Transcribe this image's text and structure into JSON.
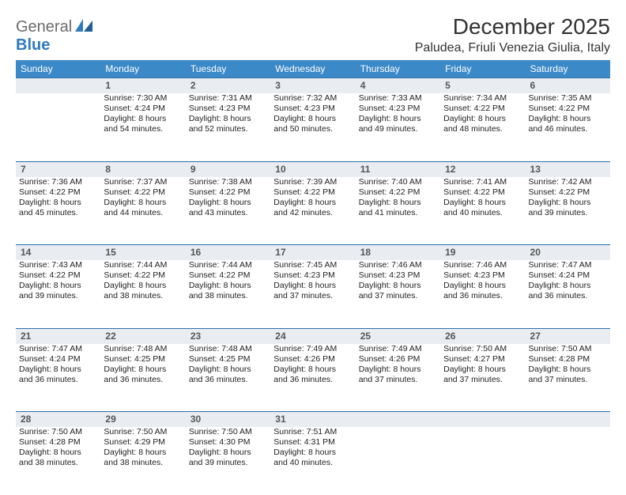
{
  "logo": {
    "text1": "General",
    "text2": "Blue"
  },
  "title": "December 2025",
  "location": "Paludea, Friuli Venezia Giulia, Italy",
  "header_bg": "#3b89c7",
  "daynum_bg": "#e9edf1",
  "daynum_border": "#2e6fa6",
  "day_headers": [
    "Sunday",
    "Monday",
    "Tuesday",
    "Wednesday",
    "Thursday",
    "Friday",
    "Saturday"
  ],
  "weeks": [
    {
      "nums": [
        "",
        "1",
        "2",
        "3",
        "4",
        "5",
        "6"
      ],
      "cells": [
        null,
        {
          "sunrise": "Sunrise: 7:30 AM",
          "sunset": "Sunset: 4:24 PM",
          "day1": "Daylight: 8 hours",
          "day2": "and 54 minutes."
        },
        {
          "sunrise": "Sunrise: 7:31 AM",
          "sunset": "Sunset: 4:23 PM",
          "day1": "Daylight: 8 hours",
          "day2": "and 52 minutes."
        },
        {
          "sunrise": "Sunrise: 7:32 AM",
          "sunset": "Sunset: 4:23 PM",
          "day1": "Daylight: 8 hours",
          "day2": "and 50 minutes."
        },
        {
          "sunrise": "Sunrise: 7:33 AM",
          "sunset": "Sunset: 4:23 PM",
          "day1": "Daylight: 8 hours",
          "day2": "and 49 minutes."
        },
        {
          "sunrise": "Sunrise: 7:34 AM",
          "sunset": "Sunset: 4:22 PM",
          "day1": "Daylight: 8 hours",
          "day2": "and 48 minutes."
        },
        {
          "sunrise": "Sunrise: 7:35 AM",
          "sunset": "Sunset: 4:22 PM",
          "day1": "Daylight: 8 hours",
          "day2": "and 46 minutes."
        }
      ]
    },
    {
      "nums": [
        "7",
        "8",
        "9",
        "10",
        "11",
        "12",
        "13"
      ],
      "cells": [
        {
          "sunrise": "Sunrise: 7:36 AM",
          "sunset": "Sunset: 4:22 PM",
          "day1": "Daylight: 8 hours",
          "day2": "and 45 minutes."
        },
        {
          "sunrise": "Sunrise: 7:37 AM",
          "sunset": "Sunset: 4:22 PM",
          "day1": "Daylight: 8 hours",
          "day2": "and 44 minutes."
        },
        {
          "sunrise": "Sunrise: 7:38 AM",
          "sunset": "Sunset: 4:22 PM",
          "day1": "Daylight: 8 hours",
          "day2": "and 43 minutes."
        },
        {
          "sunrise": "Sunrise: 7:39 AM",
          "sunset": "Sunset: 4:22 PM",
          "day1": "Daylight: 8 hours",
          "day2": "and 42 minutes."
        },
        {
          "sunrise": "Sunrise: 7:40 AM",
          "sunset": "Sunset: 4:22 PM",
          "day1": "Daylight: 8 hours",
          "day2": "and 41 minutes."
        },
        {
          "sunrise": "Sunrise: 7:41 AM",
          "sunset": "Sunset: 4:22 PM",
          "day1": "Daylight: 8 hours",
          "day2": "and 40 minutes."
        },
        {
          "sunrise": "Sunrise: 7:42 AM",
          "sunset": "Sunset: 4:22 PM",
          "day1": "Daylight: 8 hours",
          "day2": "and 39 minutes."
        }
      ]
    },
    {
      "nums": [
        "14",
        "15",
        "16",
        "17",
        "18",
        "19",
        "20"
      ],
      "cells": [
        {
          "sunrise": "Sunrise: 7:43 AM",
          "sunset": "Sunset: 4:22 PM",
          "day1": "Daylight: 8 hours",
          "day2": "and 39 minutes."
        },
        {
          "sunrise": "Sunrise: 7:44 AM",
          "sunset": "Sunset: 4:22 PM",
          "day1": "Daylight: 8 hours",
          "day2": "and 38 minutes."
        },
        {
          "sunrise": "Sunrise: 7:44 AM",
          "sunset": "Sunset: 4:22 PM",
          "day1": "Daylight: 8 hours",
          "day2": "and 38 minutes."
        },
        {
          "sunrise": "Sunrise: 7:45 AM",
          "sunset": "Sunset: 4:23 PM",
          "day1": "Daylight: 8 hours",
          "day2": "and 37 minutes."
        },
        {
          "sunrise": "Sunrise: 7:46 AM",
          "sunset": "Sunset: 4:23 PM",
          "day1": "Daylight: 8 hours",
          "day2": "and 37 minutes."
        },
        {
          "sunrise": "Sunrise: 7:46 AM",
          "sunset": "Sunset: 4:23 PM",
          "day1": "Daylight: 8 hours",
          "day2": "and 36 minutes."
        },
        {
          "sunrise": "Sunrise: 7:47 AM",
          "sunset": "Sunset: 4:24 PM",
          "day1": "Daylight: 8 hours",
          "day2": "and 36 minutes."
        }
      ]
    },
    {
      "nums": [
        "21",
        "22",
        "23",
        "24",
        "25",
        "26",
        "27"
      ],
      "cells": [
        {
          "sunrise": "Sunrise: 7:47 AM",
          "sunset": "Sunset: 4:24 PM",
          "day1": "Daylight: 8 hours",
          "day2": "and 36 minutes."
        },
        {
          "sunrise": "Sunrise: 7:48 AM",
          "sunset": "Sunset: 4:25 PM",
          "day1": "Daylight: 8 hours",
          "day2": "and 36 minutes."
        },
        {
          "sunrise": "Sunrise: 7:48 AM",
          "sunset": "Sunset: 4:25 PM",
          "day1": "Daylight: 8 hours",
          "day2": "and 36 minutes."
        },
        {
          "sunrise": "Sunrise: 7:49 AM",
          "sunset": "Sunset: 4:26 PM",
          "day1": "Daylight: 8 hours",
          "day2": "and 36 minutes."
        },
        {
          "sunrise": "Sunrise: 7:49 AM",
          "sunset": "Sunset: 4:26 PM",
          "day1": "Daylight: 8 hours",
          "day2": "and 37 minutes."
        },
        {
          "sunrise": "Sunrise: 7:50 AM",
          "sunset": "Sunset: 4:27 PM",
          "day1": "Daylight: 8 hours",
          "day2": "and 37 minutes."
        },
        {
          "sunrise": "Sunrise: 7:50 AM",
          "sunset": "Sunset: 4:28 PM",
          "day1": "Daylight: 8 hours",
          "day2": "and 37 minutes."
        }
      ]
    },
    {
      "nums": [
        "28",
        "29",
        "30",
        "31",
        "",
        "",
        ""
      ],
      "cells": [
        {
          "sunrise": "Sunrise: 7:50 AM",
          "sunset": "Sunset: 4:28 PM",
          "day1": "Daylight: 8 hours",
          "day2": "and 38 minutes."
        },
        {
          "sunrise": "Sunrise: 7:50 AM",
          "sunset": "Sunset: 4:29 PM",
          "day1": "Daylight: 8 hours",
          "day2": "and 38 minutes."
        },
        {
          "sunrise": "Sunrise: 7:50 AM",
          "sunset": "Sunset: 4:30 PM",
          "day1": "Daylight: 8 hours",
          "day2": "and 39 minutes."
        },
        {
          "sunrise": "Sunrise: 7:51 AM",
          "sunset": "Sunset: 4:31 PM",
          "day1": "Daylight: 8 hours",
          "day2": "and 40 minutes."
        },
        null,
        null,
        null
      ]
    }
  ]
}
